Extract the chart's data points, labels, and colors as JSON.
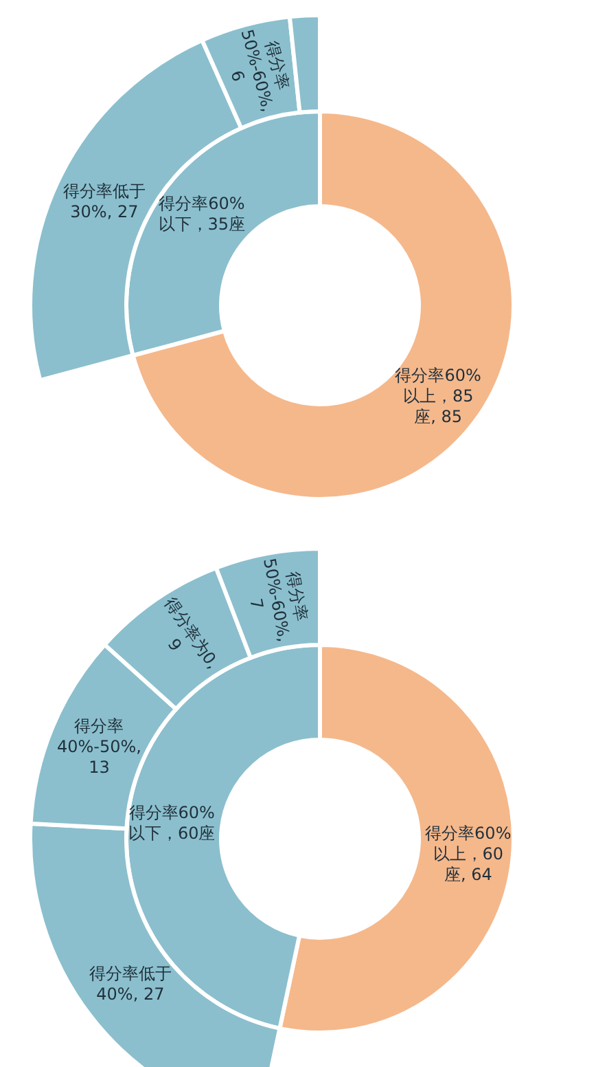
{
  "chart_data": [
    {
      "type": "donut",
      "categories": [
        "得分率60%以上，85座, 85",
        "得分率60%以下，35座"
      ],
      "colors": [
        "#f5b88b",
        "#8bbfcd"
      ],
      "values": [
        85,
        35
      ]
    },
    {
      "type": "donut",
      "categories": [
        "得分率低于30%, 27",
        "得分率50%-60%, 6",
        null
      ],
      "colors": [
        "#8bbfcd",
        "#8bbfcd",
        "#8bbfcd"
      ],
      "values": [
        27,
        6,
        2
      ]
    },
    {
      "type": "donut",
      "categories": [
        "得分率60%以上，60座, 64",
        "得分率60%以下，60座"
      ],
      "colors": [
        "#f5b88b",
        "#8bbfcd"
      ],
      "values": [
        64,
        56
      ]
    },
    {
      "type": "donut",
      "categories": [
        "得分率低于40%, 27",
        "得分率40%-50%, 13",
        "得分率为0, 9",
        "得分率50%-60%, 7"
      ],
      "colors": [
        "#8bbfcd",
        "#8bbfcd",
        "#8bbfcd",
        "#8bbfcd"
      ],
      "values": [
        27,
        13,
        9,
        7
      ]
    }
  ]
}
